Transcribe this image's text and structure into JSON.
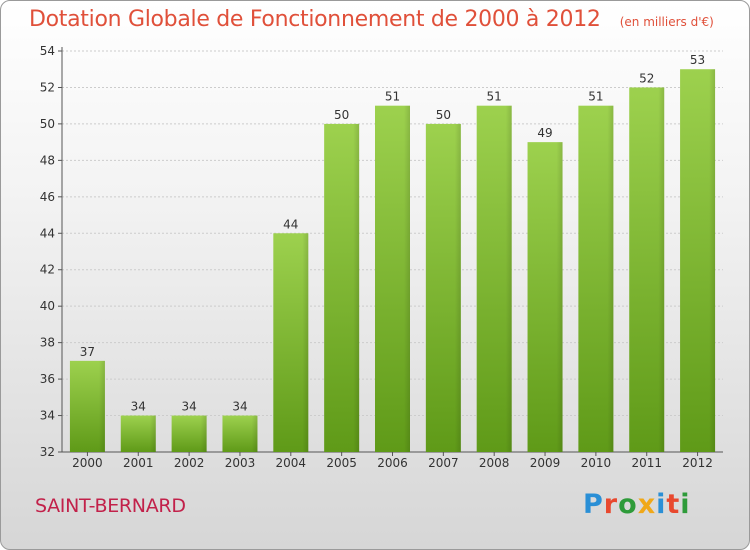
{
  "header": {
    "title": "Dotation Globale de Fonctionnement de 2000 à 2012",
    "unit_note": "(en milliers d'€)"
  },
  "footer": {
    "commune": "SAINT-BERNARD",
    "logo": {
      "text": "Proxiti",
      "letters": [
        "P",
        "r",
        "o",
        "x",
        "i",
        "t",
        "i"
      ],
      "colors": [
        "#2a8fd6",
        "#e8482e",
        "#2e9b3a",
        "#f0a818",
        "#2a8fd6",
        "#e8482e",
        "#2e9b3a"
      ]
    }
  },
  "colors": {
    "bar_light": "#9dd14e",
    "bar_dark": "#5f9a18",
    "title": "#e0503a",
    "commune": "#c2214a",
    "grid": "#cccccc"
  },
  "chart_data": {
    "type": "bar",
    "categories": [
      "2000",
      "2001",
      "2002",
      "2003",
      "2004",
      "2005",
      "2006",
      "2007",
      "2008",
      "2009",
      "2010",
      "2011",
      "2012"
    ],
    "values": [
      37,
      34,
      34,
      34,
      44,
      50,
      51,
      50,
      51,
      49,
      51,
      52,
      53
    ],
    "title": "Dotation Globale de Fonctionnement de 2000 à 2012",
    "subtitle": "(en milliers d'€)",
    "ylim": [
      32,
      54
    ],
    "yticks": [
      32,
      34,
      36,
      38,
      40,
      42,
      44,
      46,
      48,
      50,
      52,
      54
    ],
    "grid": true
  }
}
